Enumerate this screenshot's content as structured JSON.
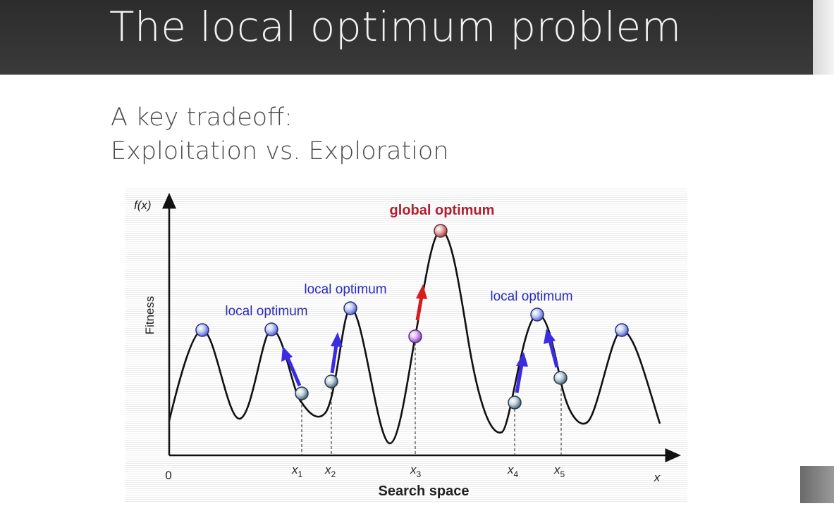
{
  "slide": {
    "title": "The local optimum problem",
    "subtitle_line1": "A key tradeoff:",
    "subtitle_line2": "Exploitation vs. Exploration"
  },
  "figure": {
    "y_axis_label": "f(x)",
    "y_axis_title": "Fitness",
    "x_axis_title": "Search space",
    "x_axis_end_label": "x",
    "origin_label": "0",
    "labels": {
      "global": "global optimum",
      "local_a": "local optimum",
      "local_b": "local optimum",
      "local_c": "local optimum"
    },
    "x_markers": [
      {
        "base": "x",
        "sub": "1"
      },
      {
        "base": "x",
        "sub": "2"
      },
      {
        "base": "x",
        "sub": "3"
      },
      {
        "base": "x",
        "sub": "4"
      },
      {
        "base": "x",
        "sub": "5"
      }
    ],
    "colors": {
      "local_label": "#2b2bb8",
      "global_label": "#b01f2e",
      "local_arrow": "#3a2de0",
      "global_arrow": "#d81c1c",
      "peak_node": "#9fb0f0",
      "start_node": "#b8c8d4",
      "x3_node": "#c89ae8",
      "global_node": "#d89a9a"
    }
  }
}
